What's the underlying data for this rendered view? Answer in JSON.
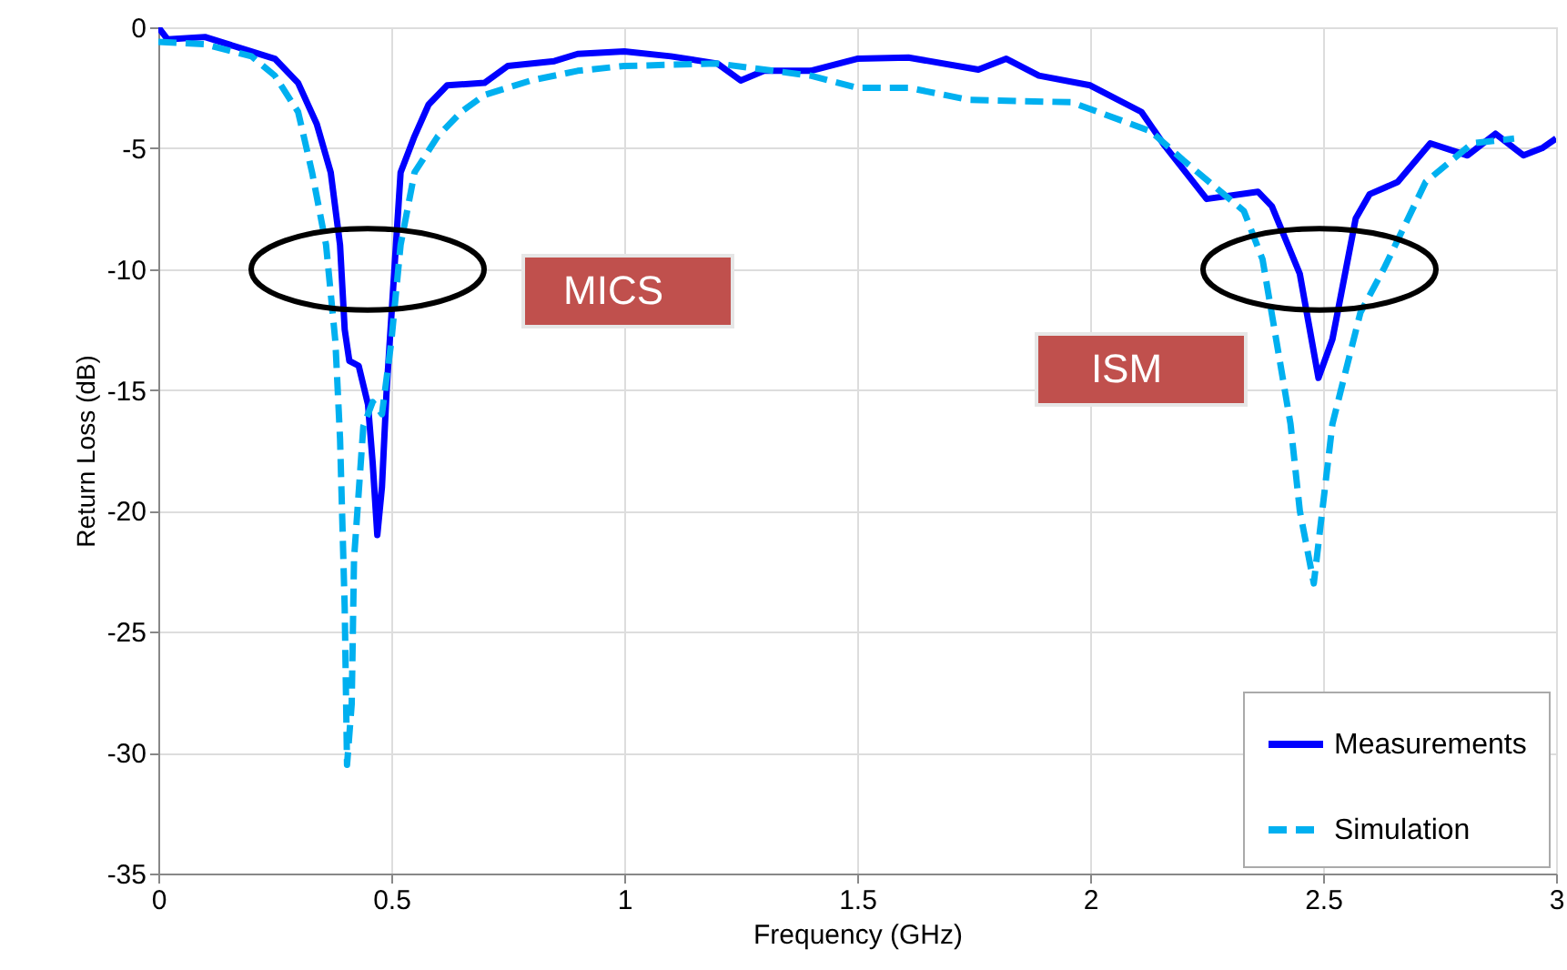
{
  "chart_data": {
    "type": "line",
    "xlabel": "Frequency (GHz)",
    "ylabel": "Return Loss (dB)",
    "xlim": [
      0,
      3
    ],
    "ylim": [
      -35,
      0
    ],
    "xticks": [
      0,
      0.5,
      1,
      1.5,
      2,
      2.5,
      3
    ],
    "yticks": [
      -35,
      -30,
      -25,
      -20,
      -15,
      -10,
      -5,
      0
    ],
    "grid": true,
    "legend": "bottom right",
    "annotations": [
      "MICS",
      "ISM"
    ],
    "series": [
      {
        "name": "Measurements",
        "color": "#0000ff",
        "line_style": "solid",
        "x": [
          0,
          0.02,
          0.1,
          0.2,
          0.25,
          0.3,
          0.34,
          0.37,
          0.39,
          0.4,
          0.41,
          0.43,
          0.45,
          0.46,
          0.47,
          0.48,
          0.49,
          0.51,
          0.52,
          0.55,
          0.58,
          0.62,
          0.7,
          0.75,
          0.85,
          0.9,
          1.0,
          1.1,
          1.2,
          1.25,
          1.3,
          1.4,
          1.5,
          1.61,
          1.76,
          1.82,
          1.89,
          2.0,
          2.11,
          2.16,
          2.25,
          2.36,
          2.39,
          2.45,
          2.49,
          2.52,
          2.57,
          2.6,
          2.66,
          2.73,
          2.81,
          2.87,
          2.93,
          2.97,
          3.0
        ],
        "values": [
          0,
          -0.5,
          -0.4,
          -1.0,
          -1.3,
          -2.3,
          -4,
          -6,
          -9,
          -12.5,
          -13.8,
          -14,
          -15.6,
          -18,
          -21,
          -19,
          -15,
          -9,
          -6,
          -4.5,
          -3.2,
          -2.4,
          -2.3,
          -1.6,
          -1.4,
          -1.1,
          -1.0,
          -1.2,
          -1.5,
          -2.2,
          -1.8,
          -1.8,
          -1.3,
          -1.25,
          -1.75,
          -1.3,
          -2,
          -2.4,
          -3.5,
          -4.9,
          -7.1,
          -6.8,
          -7.4,
          -10.2,
          -14.5,
          -12.9,
          -7.9,
          -6.9,
          -6.4,
          -4.8,
          -5.3,
          -4.4,
          -5.3,
          -5.0,
          -4.6
        ]
      },
      {
        "name": "Simulation",
        "color": "#00b0f0",
        "line_style": "dashed",
        "x": [
          0,
          0.1,
          0.2,
          0.25,
          0.3,
          0.33,
          0.36,
          0.38,
          0.39,
          0.4,
          0.405,
          0.415,
          0.42,
          0.44,
          0.46,
          0.48,
          0.5,
          0.52,
          0.55,
          0.6,
          0.65,
          0.7,
          0.8,
          0.9,
          1.0,
          1.2,
          1.4,
          1.5,
          1.61,
          1.74,
          1.96,
          2.13,
          2.2,
          2.33,
          2.37,
          2.43,
          2.45,
          2.48,
          2.52,
          2.58,
          2.63,
          2.72,
          2.82,
          2.91
        ],
        "values": [
          -0.6,
          -0.7,
          -1.2,
          -2,
          -3.5,
          -6,
          -9,
          -13,
          -17,
          -24,
          -30.5,
          -28,
          -22,
          -16.5,
          -15.5,
          -16,
          -13,
          -9,
          -6,
          -4.5,
          -3.5,
          -2.8,
          -2.2,
          -1.8,
          -1.6,
          -1.5,
          -2.0,
          -2.5,
          -2.5,
          -3,
          -3.1,
          -4.3,
          -5.5,
          -7.6,
          -9.6,
          -16.4,
          -20,
          -23,
          -16.4,
          -11.8,
          -10,
          -6.4,
          -4.8,
          -4.6
        ]
      }
    ]
  }
}
